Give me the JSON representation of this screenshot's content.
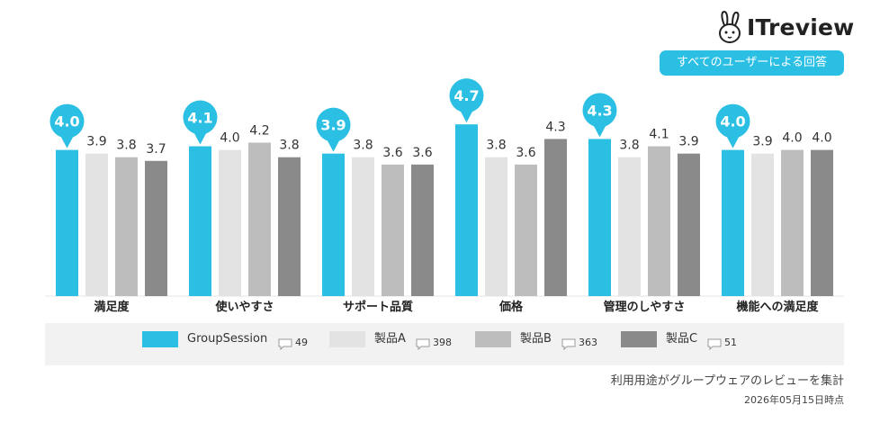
{
  "brand": {
    "name": "ITreview",
    "mascot_icon": "rabbit-icon"
  },
  "filter_label": "すべてのユーザーによる回答",
  "colors": {
    "accent": "#2bbfe3",
    "product_a": "#e3e3e3",
    "product_b": "#bdbdbd",
    "product_c": "#8a8a8a"
  },
  "chart_data": {
    "type": "bar",
    "categories": [
      "満足度",
      "使いやすさ",
      "サポート品質",
      "価格",
      "管理のしやすさ",
      "機能への満足度"
    ],
    "series": [
      {
        "name": "GroupSession",
        "values": [
          4.0,
          4.1,
          3.9,
          4.7,
          4.3,
          4.0
        ],
        "color": "#2bbfe3",
        "highlight": true
      },
      {
        "name": "製品A",
        "values": [
          3.9,
          4.0,
          3.8,
          3.8,
          3.8,
          3.9
        ],
        "color": "#e3e3e3"
      },
      {
        "name": "製品B",
        "values": [
          3.8,
          4.2,
          3.6,
          3.6,
          4.1,
          4.0
        ],
        "color": "#bdbdbd"
      },
      {
        "name": "製品C",
        "values": [
          3.7,
          3.8,
          3.6,
          4.3,
          3.9,
          4.0
        ],
        "color": "#8a8a8a"
      }
    ],
    "ylim": [
      0,
      5
    ],
    "grid": false,
    "legend_position": "bottom"
  },
  "legend": [
    {
      "label": "GroupSession",
      "count": "49"
    },
    {
      "label": "製品A",
      "count": "398"
    },
    {
      "label": "製品B",
      "count": "363"
    },
    {
      "label": "製品C",
      "count": "51"
    }
  ],
  "footnote": "利用用途がグループウェアのレビューを集計",
  "date_stamp": "2026年05月15日時点"
}
